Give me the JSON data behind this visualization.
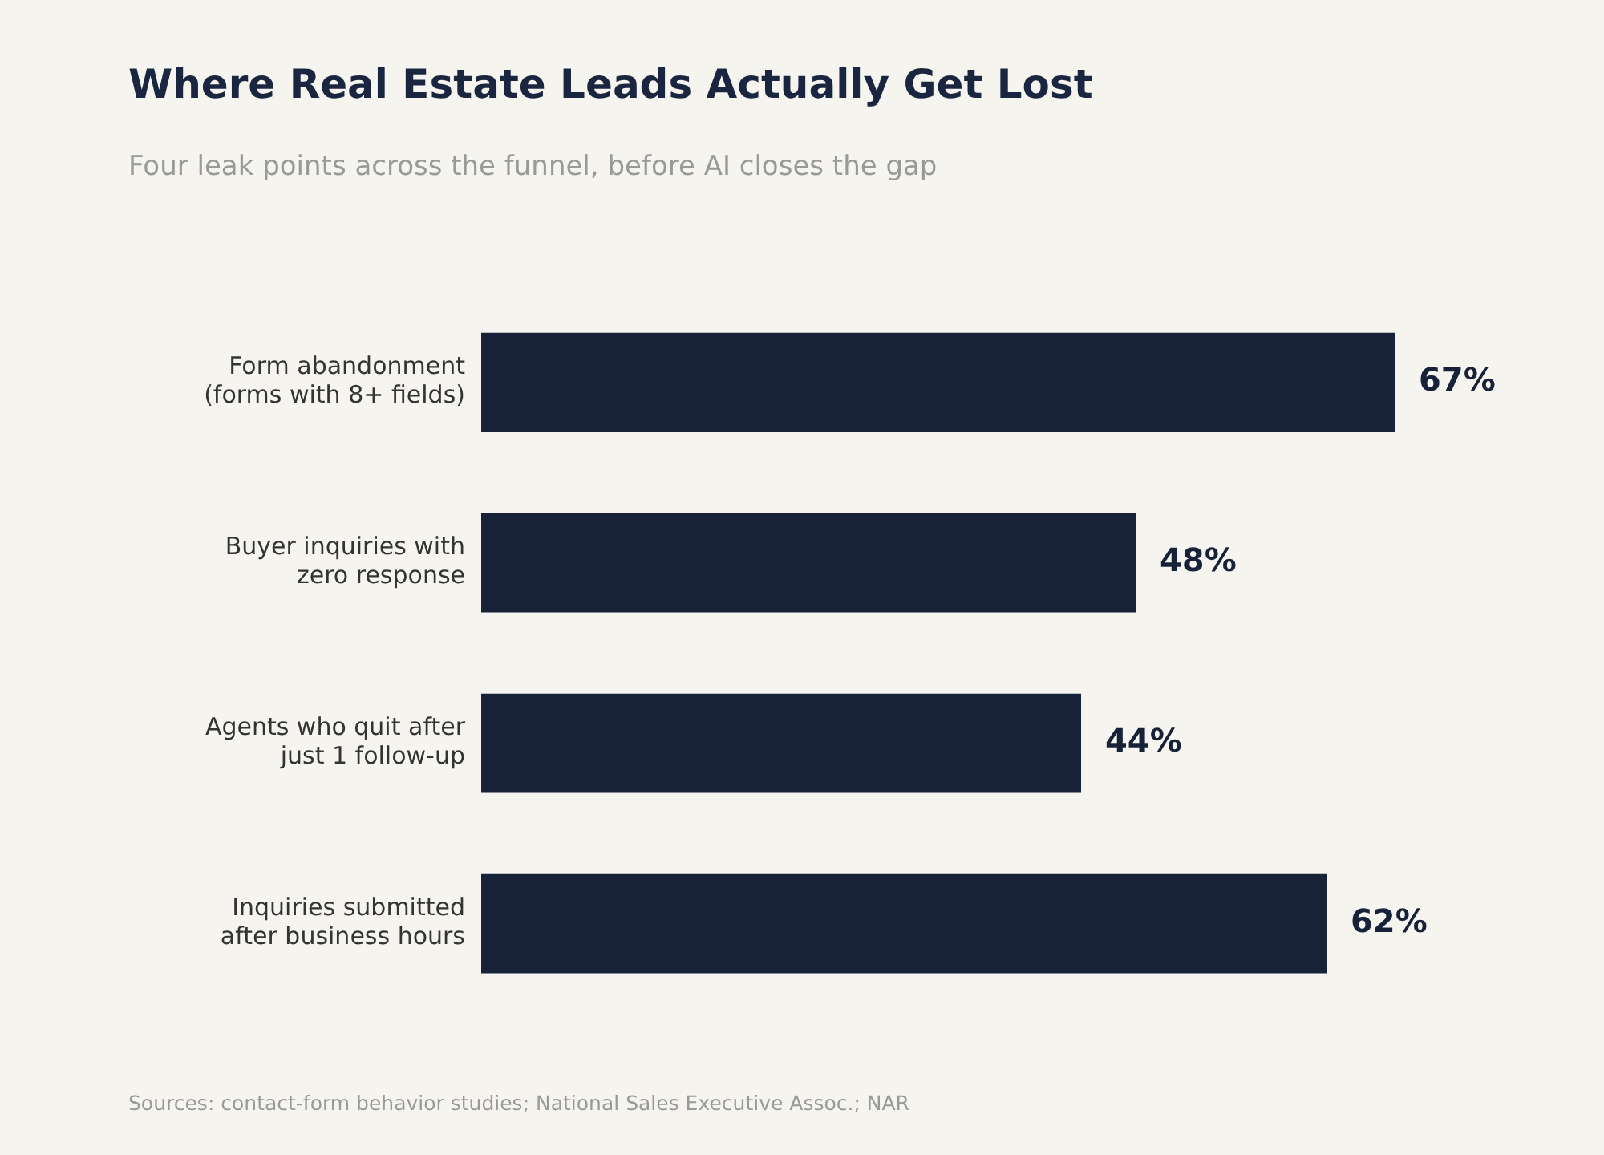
{
  "chart_data": {
    "type": "bar",
    "orientation": "horizontal",
    "title": "Where Real Estate Leads Actually Get Lost",
    "subtitle": "Four leak points across the funnel, before AI closes the gap",
    "categories": [
      "Form abandonment\n(forms with 8+ fields)",
      "Buyer inquiries with\nzero response",
      "Agents who quit after\njust 1 follow-up",
      "Inquiries submitted\nafter business hours"
    ],
    "values": [
      67,
      48,
      44,
      62
    ],
    "value_labels": [
      "67%",
      "48%",
      "44%",
      "62%"
    ],
    "color": "#172239",
    "tick_labels": "y",
    "annotations": [
      "Sources: contact-form behavior studies; National Sales Executive Assoc.; NAR"
    ]
  }
}
